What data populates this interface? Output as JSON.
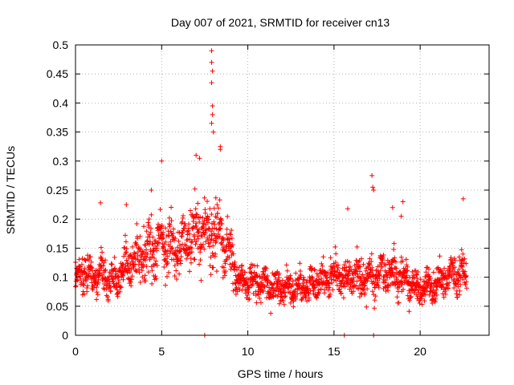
{
  "chart_data": {
    "type": "scatter",
    "title": "Day 007 of 2021, SRMTID for receiver cn13",
    "xlabel": "GPS time / hours",
    "ylabel": "SRMTID / TECUs",
    "xlim": [
      0,
      24
    ],
    "ylim": [
      0,
      0.5
    ],
    "xticks": [
      0,
      5,
      10,
      15,
      20
    ],
    "xtick_labels": [
      "0",
      "5",
      "10",
      "15",
      "20"
    ],
    "yticks": [
      0,
      0.05,
      0.1,
      0.15,
      0.2,
      0.25,
      0.3,
      0.35,
      0.4,
      0.45,
      0.5
    ],
    "ytick_labels": [
      "0",
      "0.05",
      "0.1",
      "0.15",
      "0.2",
      "0.25",
      "0.3",
      "0.35",
      "0.4",
      "0.45",
      "0.5"
    ],
    "grid": true,
    "marker": "+",
    "color": "#ff0000",
    "series": [
      {
        "name": "SRMTID",
        "envelope": [
          {
            "x": 0.0,
            "y": 0.09
          },
          {
            "x": 0.5,
            "y": 0.11
          },
          {
            "x": 1.0,
            "y": 0.1
          },
          {
            "x": 1.5,
            "y": 0.11
          },
          {
            "x": 2.0,
            "y": 0.09
          },
          {
            "x": 2.5,
            "y": 0.1
          },
          {
            "x": 3.0,
            "y": 0.12
          },
          {
            "x": 3.5,
            "y": 0.13
          },
          {
            "x": 4.0,
            "y": 0.14
          },
          {
            "x": 4.5,
            "y": 0.15
          },
          {
            "x": 5.0,
            "y": 0.16
          },
          {
            "x": 5.5,
            "y": 0.15
          },
          {
            "x": 6.0,
            "y": 0.15
          },
          {
            "x": 6.5,
            "y": 0.17
          },
          {
            "x": 7.0,
            "y": 0.18
          },
          {
            "x": 7.5,
            "y": 0.18
          },
          {
            "x": 8.0,
            "y": 0.17
          },
          {
            "x": 8.5,
            "y": 0.16
          },
          {
            "x": 9.0,
            "y": 0.14
          },
          {
            "x": 9.5,
            "y": 0.09
          },
          {
            "x": 10.0,
            "y": 0.09
          },
          {
            "x": 11.0,
            "y": 0.09
          },
          {
            "x": 12.0,
            "y": 0.08
          },
          {
            "x": 13.0,
            "y": 0.08
          },
          {
            "x": 14.0,
            "y": 0.09
          },
          {
            "x": 15.0,
            "y": 0.1
          },
          {
            "x": 16.0,
            "y": 0.1
          },
          {
            "x": 17.0,
            "y": 0.1
          },
          {
            "x": 18.0,
            "y": 0.11
          },
          {
            "x": 19.0,
            "y": 0.1
          },
          {
            "x": 20.0,
            "y": 0.08
          },
          {
            "x": 21.0,
            "y": 0.09
          },
          {
            "x": 22.0,
            "y": 0.11
          },
          {
            "x": 22.7,
            "y": 0.1
          }
        ],
        "x_range": [
          0.0,
          22.7
        ],
        "approx_points": 1900,
        "peaks": [
          {
            "x": 7.9,
            "y": 0.49
          },
          {
            "x": 7.9,
            "y": 0.47
          },
          {
            "x": 7.95,
            "y": 0.455
          },
          {
            "x": 7.9,
            "y": 0.435
          },
          {
            "x": 7.95,
            "y": 0.395
          },
          {
            "x": 7.95,
            "y": 0.38
          },
          {
            "x": 7.9,
            "y": 0.365
          },
          {
            "x": 8.0,
            "y": 0.35
          },
          {
            "x": 8.4,
            "y": 0.325
          },
          {
            "x": 8.4,
            "y": 0.32
          },
          {
            "x": 7.0,
            "y": 0.31
          },
          {
            "x": 7.2,
            "y": 0.305
          },
          {
            "x": 5.0,
            "y": 0.3
          },
          {
            "x": 17.2,
            "y": 0.275
          },
          {
            "x": 17.25,
            "y": 0.255
          },
          {
            "x": 17.3,
            "y": 0.25
          },
          {
            "x": 1.45,
            "y": 0.228
          },
          {
            "x": 22.5,
            "y": 0.235
          },
          {
            "x": 19.0,
            "y": 0.23
          },
          {
            "x": 15.8,
            "y": 0.218
          },
          {
            "x": 2.95,
            "y": 0.225
          },
          {
            "x": 4.4,
            "y": 0.25
          },
          {
            "x": 18.4,
            "y": 0.22
          },
          {
            "x": 18.9,
            "y": 0.205
          }
        ],
        "zero_points": [
          {
            "x": 7.5,
            "y": 0.0
          },
          {
            "x": 15.6,
            "y": 0.0
          },
          {
            "x": 17.3,
            "y": 0.0
          }
        ]
      }
    ]
  }
}
